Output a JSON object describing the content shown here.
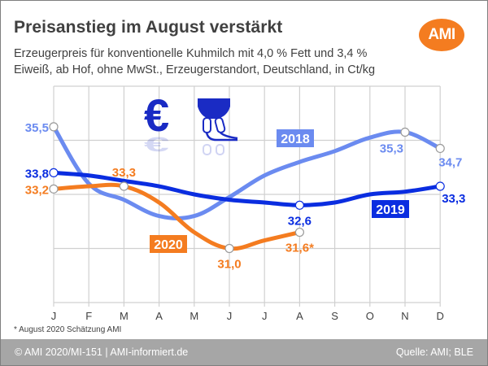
{
  "header": {
    "title": "Preisanstieg im August verstärkt",
    "subtitle_line1": "Erzeugerpreis für konventionelle Kuhmilch mit 4,0 % Fett und 3,4 %",
    "subtitle_line2": "Eiweiß, ab Hof, ohne MwSt., Erzeugerstandort, Deutschland, in Ct/kg",
    "logo_text": "AMI",
    "logo_color": "#f47c20"
  },
  "icons": [
    "euro-icon",
    "milking-machine-icon"
  ],
  "footnote": "* August 2020 Schätzung AMI",
  "footer": {
    "left": "© AMI 2020/MI-151 | AMI-informiert.de",
    "right": "Quelle: AMI; BLE"
  },
  "chart_data": {
    "type": "line",
    "title": "Preisanstieg im August verstärkt",
    "xlabel": "",
    "ylabel": "Ct/kg",
    "categories": [
      "J",
      "F",
      "M",
      "A",
      "M",
      "J",
      "J",
      "A",
      "S",
      "O",
      "N",
      "D"
    ],
    "ylim": [
      29,
      37
    ],
    "grid": true,
    "y_gridlines": [
      29,
      31,
      33,
      35,
      37
    ],
    "series": [
      {
        "name": "2018",
        "color": "#6b8bf0",
        "values": [
          35.5,
          33.4,
          32.8,
          32.2,
          32.2,
          32.9,
          33.7,
          34.2,
          34.6,
          35.1,
          35.3,
          34.7
        ],
        "labeled_points": [
          {
            "index": 0,
            "text": "35,5"
          },
          {
            "index": 10,
            "text": "35,3"
          },
          {
            "index": 11,
            "text": "34,7"
          }
        ]
      },
      {
        "name": "2019",
        "color": "#0a2de0",
        "values": [
          33.8,
          33.7,
          33.5,
          33.3,
          33.0,
          32.8,
          32.7,
          32.6,
          32.7,
          33.0,
          33.1,
          33.3
        ],
        "labeled_points": [
          {
            "index": 0,
            "text": "33,8"
          },
          {
            "index": 7,
            "text": "32,6"
          },
          {
            "index": 11,
            "text": "33,3"
          }
        ]
      },
      {
        "name": "2020",
        "color": "#f47c20",
        "values": [
          33.2,
          33.3,
          33.3,
          32.7,
          31.6,
          31.0,
          31.3,
          31.6,
          null,
          null,
          null,
          null
        ],
        "labeled_points": [
          {
            "index": 0,
            "text": "33,2"
          },
          {
            "index": 2,
            "text": "33,3"
          },
          {
            "index": 5,
            "text": "31,0"
          },
          {
            "index": 7,
            "text": "31,6*"
          }
        ]
      }
    ],
    "annotations": [
      "* August 2020 Schätzung AMI"
    ]
  }
}
